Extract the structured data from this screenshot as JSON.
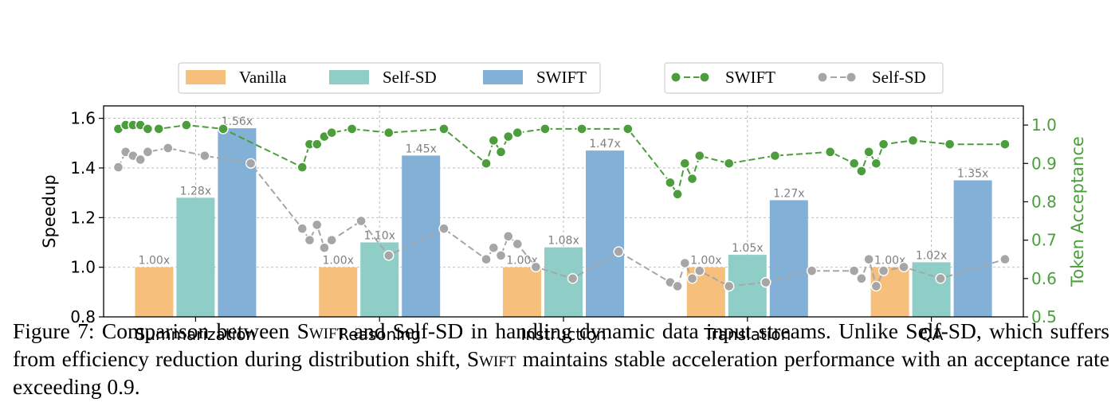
{
  "chart_data": {
    "type": "bar+line",
    "categories": [
      "Summarization",
      "Reasoning",
      "Instruction",
      "Translation",
      "QA"
    ],
    "bar_series": [
      {
        "name": "Vanilla",
        "color": "#f6bf7c",
        "values": [
          1.0,
          1.0,
          1.0,
          1.0,
          1.0
        ],
        "labels": [
          "1.00x",
          "1.00x",
          "1.00x",
          "1.00x",
          "1.00x"
        ]
      },
      {
        "name": "Self-SD",
        "color": "#8fcec6",
        "values": [
          1.28,
          1.1,
          1.08,
          1.05,
          1.02
        ],
        "labels": [
          "1.28x",
          "1.10x",
          "1.08x",
          "1.05x",
          "1.02x"
        ]
      },
      {
        "name": "SWIFT",
        "color": "#83b0d7",
        "values": [
          1.56,
          1.45,
          1.47,
          1.27,
          1.35
        ],
        "labels": [
          "1.56x",
          "1.45x",
          "1.47x",
          "1.27x",
          "1.35x"
        ]
      }
    ],
    "line_series": [
      {
        "name": "SWIFT",
        "color": "#4c9e3c",
        "points": [
          [
            -0.42,
            0.99
          ],
          [
            -0.38,
            1.0
          ],
          [
            -0.34,
            1.0
          ],
          [
            -0.3,
            1.0
          ],
          [
            -0.26,
            0.99
          ],
          [
            -0.2,
            0.99
          ],
          [
            -0.05,
            1.0
          ],
          [
            0.15,
            0.99
          ],
          [
            0.58,
            0.89
          ],
          [
            0.62,
            0.95
          ],
          [
            0.66,
            0.95
          ],
          [
            0.7,
            0.97
          ],
          [
            0.74,
            0.98
          ],
          [
            0.85,
            0.99
          ],
          [
            1.05,
            0.98
          ],
          [
            1.35,
            0.99
          ],
          [
            1.58,
            0.9
          ],
          [
            1.62,
            0.96
          ],
          [
            1.66,
            0.93
          ],
          [
            1.7,
            0.97
          ],
          [
            1.75,
            0.98
          ],
          [
            1.9,
            0.99
          ],
          [
            2.1,
            0.99
          ],
          [
            2.35,
            0.99
          ],
          [
            2.58,
            0.85
          ],
          [
            2.62,
            0.82
          ],
          [
            2.66,
            0.9
          ],
          [
            2.7,
            0.86
          ],
          [
            2.74,
            0.92
          ],
          [
            2.9,
            0.9
          ],
          [
            3.15,
            0.92
          ],
          [
            3.45,
            0.93
          ],
          [
            3.58,
            0.9
          ],
          [
            3.62,
            0.88
          ],
          [
            3.66,
            0.93
          ],
          [
            3.7,
            0.9
          ],
          [
            3.74,
            0.95
          ],
          [
            3.9,
            0.96
          ],
          [
            4.1,
            0.95
          ],
          [
            4.4,
            0.95
          ]
        ]
      },
      {
        "name": "Self-SD",
        "color": "#a6a6a6",
        "points": [
          [
            -0.42,
            0.89
          ],
          [
            -0.38,
            0.93
          ],
          [
            -0.34,
            0.92
          ],
          [
            -0.3,
            0.91
          ],
          [
            -0.26,
            0.93
          ],
          [
            -0.15,
            0.94
          ],
          [
            0.05,
            0.92
          ],
          [
            0.3,
            0.9
          ],
          [
            0.58,
            0.73
          ],
          [
            0.62,
            0.7
          ],
          [
            0.66,
            0.74
          ],
          [
            0.7,
            0.68
          ],
          [
            0.74,
            0.7
          ],
          [
            0.9,
            0.75
          ],
          [
            1.05,
            0.66
          ],
          [
            1.35,
            0.73
          ],
          [
            1.58,
            0.65
          ],
          [
            1.62,
            0.68
          ],
          [
            1.66,
            0.66
          ],
          [
            1.7,
            0.71
          ],
          [
            1.75,
            0.69
          ],
          [
            1.85,
            0.63
          ],
          [
            2.05,
            0.6
          ],
          [
            2.3,
            0.67
          ],
          [
            2.58,
            0.59
          ],
          [
            2.62,
            0.58
          ],
          [
            2.66,
            0.64
          ],
          [
            2.7,
            0.6
          ],
          [
            2.74,
            0.62
          ],
          [
            2.9,
            0.58
          ],
          [
            3.1,
            0.59
          ],
          [
            3.35,
            0.62
          ],
          [
            3.58,
            0.62
          ],
          [
            3.62,
            0.6
          ],
          [
            3.66,
            0.65
          ],
          [
            3.7,
            0.58
          ],
          [
            3.74,
            0.62
          ],
          [
            3.85,
            0.63
          ],
          [
            4.05,
            0.6
          ],
          [
            4.4,
            0.65
          ]
        ]
      }
    ],
    "ylabel": "Speedup",
    "ylabel2": "Token Acceptance",
    "ylim": [
      0.8,
      1.65
    ],
    "ylim2": [
      0.5,
      1.05
    ],
    "yticks": [
      0.8,
      1.0,
      1.2,
      1.4,
      1.6
    ],
    "yticks_labels": [
      "0.8",
      "1.0",
      "1.2",
      "1.4",
      "1.6"
    ],
    "y2ticks": [
      0.5,
      0.6,
      0.7,
      0.8,
      0.9,
      1.0
    ],
    "y2ticks_labels": [
      "0.5",
      "0.6",
      "0.7",
      "0.8",
      "0.9",
      "1.0"
    ],
    "grid": true,
    "legend_bars_position": "top-left",
    "legend_lines_position": "top-right"
  },
  "caption": {
    "prefix": "Figure 7: Comparison between ",
    "swift1": "Swift",
    "mid1": " and Self-SD in handling dynamic data input streams. Unlike Self-SD, which suffers from efficiency reduction during distribution shift, ",
    "swift2": "Swift",
    "suffix": " maintains stable acceleration performance with an acceptance rate exceeding 0.9."
  }
}
